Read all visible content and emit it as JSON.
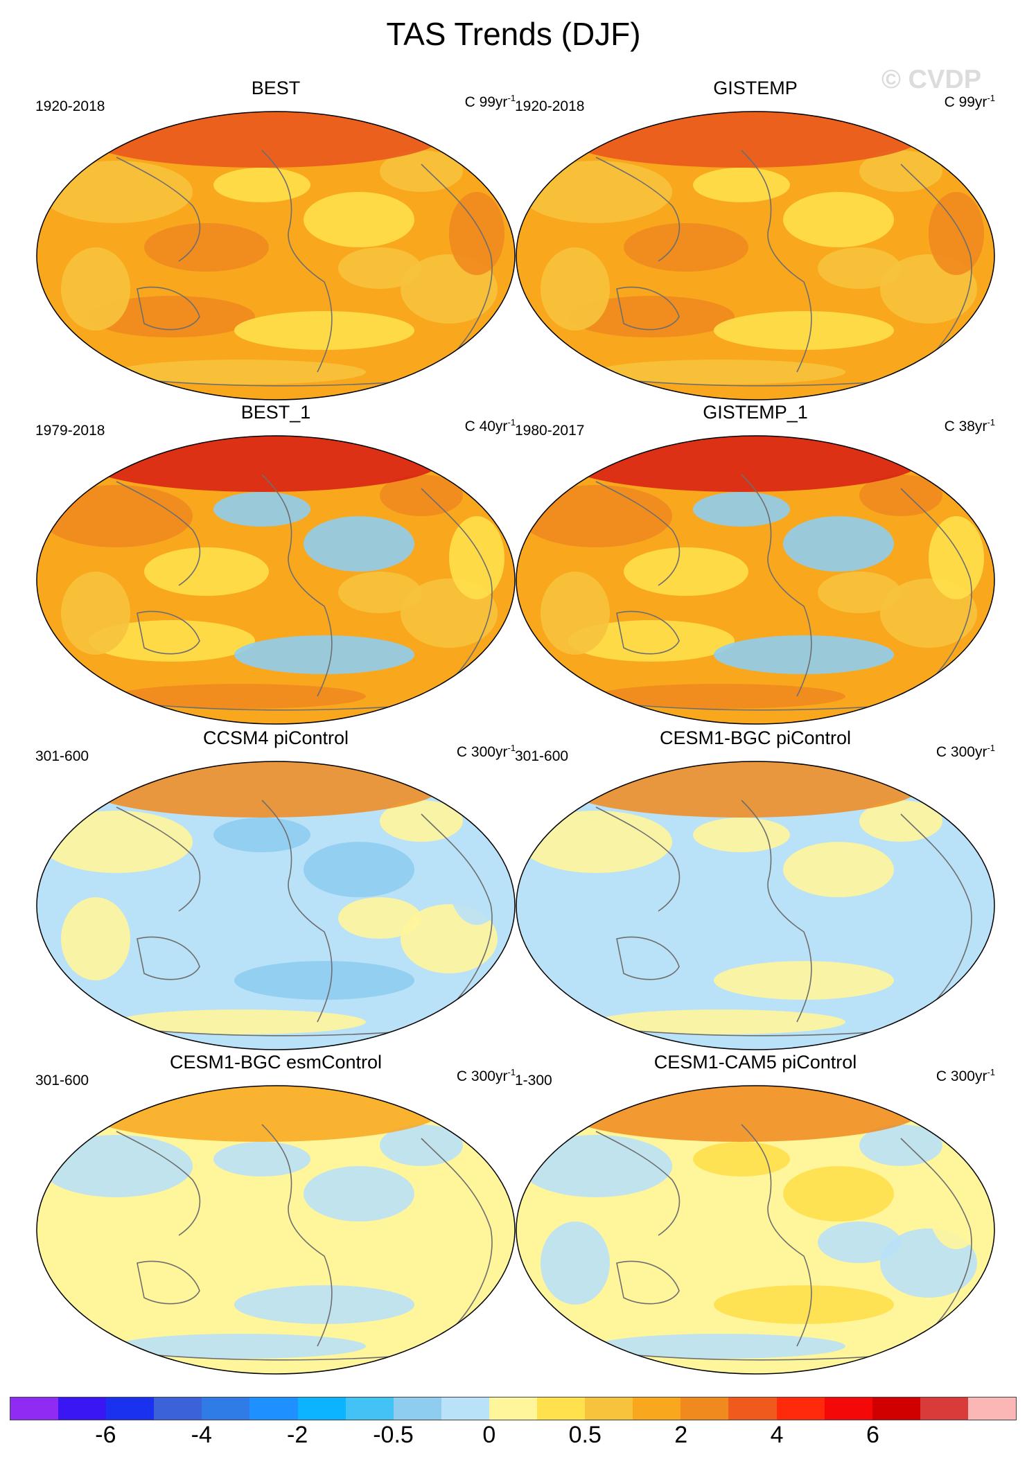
{
  "figure_title": "TAS Trends (DJF)",
  "watermark": "© CVDP",
  "panels": [
    {
      "title": "BEST",
      "period": "1920-2018",
      "units": "C 99yr",
      "units_exp": "-1",
      "palette": [
        "#f9a71d",
        "#f7c33d",
        "#f08a1f",
        "#ffe04d",
        "#f7c33d"
      ],
      "hot": "#e8541c"
    },
    {
      "title": "GISTEMP",
      "period": "1920-2018",
      "units": "C 99yr",
      "units_exp": "-1",
      "palette": [
        "#f9a71d",
        "#f7c33d",
        "#f08a1f",
        "#ffe04d",
        "#f7c33d"
      ],
      "hot": "#e8541c"
    },
    {
      "title": "BEST_1",
      "period": "1979-2018",
      "units": "C 40yr",
      "units_exp": "-1",
      "palette": [
        "#f9a71d",
        "#f08a1f",
        "#ffe04d",
        "#8fcdf0",
        "#f7c33d"
      ],
      "hot": "#d71c14"
    },
    {
      "title": "GISTEMP_1",
      "period": "1980-2017",
      "units": "C 38yr",
      "units_exp": "-1",
      "palette": [
        "#f9a71d",
        "#f08a1f",
        "#ffe04d",
        "#8fcdf0",
        "#f7c33d"
      ],
      "hot": "#d71c14"
    },
    {
      "title": "CCSM4 piControl",
      "period": "301-600",
      "units": "C 300yr",
      "units_exp": "-1",
      "palette": [
        "#b9e1f7",
        "#fff59b",
        "#b9e1f7",
        "#8fcdf0",
        "#fff59b"
      ],
      "hot": "#f08a1f"
    },
    {
      "title": "CESM1-BGC piControl",
      "period": "301-600",
      "units": "C 300yr",
      "units_exp": "-1",
      "palette": [
        "#b9e1f7",
        "#fff59b",
        "#b9e1f7",
        "#fff59b",
        "#b9e1f7"
      ],
      "hot": "#f08a1f"
    },
    {
      "title": "CESM1-BGC esmControl",
      "period": "301-600",
      "units": "C 300yr",
      "units_exp": "-1",
      "palette": [
        "#fff59b",
        "#b9e1f7",
        "#fff59b",
        "#b9e1f7",
        "#fff59b"
      ],
      "hot": "#f9a71d"
    },
    {
      "title": "CESM1-CAM5 piControl",
      "period": "1-300",
      "units": "C 300yr",
      "units_exp": "-1",
      "palette": [
        "#fff59b",
        "#b9e1f7",
        "#fff59b",
        "#ffe04d",
        "#b9e1f7"
      ],
      "hot": "#f08a1f"
    }
  ],
  "colorbar": {
    "colors": [
      "#8f2bf2",
      "#3b16f5",
      "#1a32f0",
      "#3b62d9",
      "#2f7ce6",
      "#1e90ff",
      "#0cb4ff",
      "#42c2f5",
      "#8fcdf0",
      "#b9e1f7",
      "#fff59b",
      "#ffe04d",
      "#f7c33d",
      "#f9a71d",
      "#f08a1f",
      "#f05a1c",
      "#ff2a0c",
      "#f40808",
      "#d10000",
      "#d93a3a",
      "#fbb6b6"
    ],
    "labels": [
      "-6",
      "-4",
      "-2",
      "-0.5",
      "0",
      "0.5",
      "2",
      "4",
      "6"
    ],
    "label_boundaries": [
      2,
      4,
      6,
      8,
      10,
      12,
      14,
      16,
      18
    ]
  }
}
